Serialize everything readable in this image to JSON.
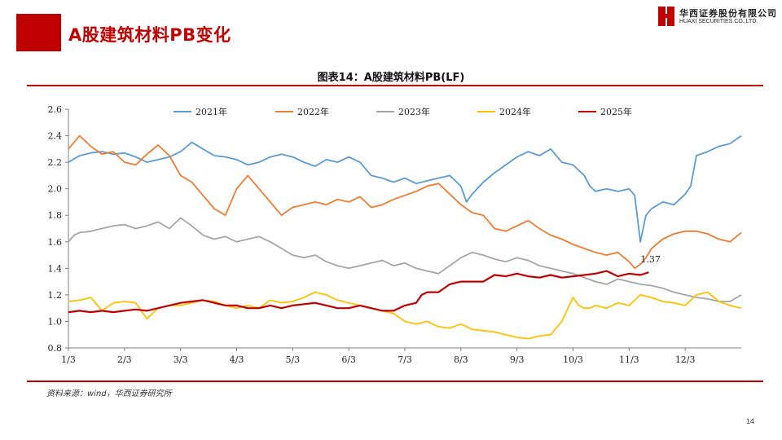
{
  "page": {
    "title": "A股建筑材料PB变化",
    "logo_cn": "华西证券股份有限公司",
    "logo_en": "HUAXI SECURITIES CO.,LTD.",
    "figure_title": "图表14：A股建筑材料PB(LF)",
    "source": "资料来源：wind，华西证券研究所",
    "page_number": "14"
  },
  "colors": {
    "brand": "#c00000"
  },
  "chart_data": {
    "type": "line",
    "title": "图表14：A股建筑材料PB(LF)",
    "xlabel": "",
    "ylabel": "",
    "x_ticks": [
      "1/3",
      "2/3",
      "3/3",
      "4/3",
      "5/3",
      "6/3",
      "7/3",
      "8/3",
      "9/3",
      "10/3",
      "11/3",
      "12/3"
    ],
    "y_ticks": [
      "0.8",
      "1.0",
      "1.2",
      "1.4",
      "1.6",
      "1.8",
      "2.0",
      "2.2",
      "2.4",
      "2.6"
    ],
    "ylim": [
      0.8,
      2.6
    ],
    "xlim": [
      0,
      12
    ],
    "grid": false,
    "legend_position": "top",
    "annotation": {
      "text": "1.37",
      "series": "2025年",
      "x": 10.35,
      "y": 1.37
    },
    "series": [
      {
        "name": "2021年",
        "color": "#5b9bd5",
        "x": [
          0,
          0.2,
          0.4,
          0.6,
          0.8,
          1.0,
          1.2,
          1.4,
          1.6,
          1.8,
          2.0,
          2.2,
          2.4,
          2.6,
          2.8,
          3.0,
          3.2,
          3.4,
          3.6,
          3.8,
          4.0,
          4.2,
          4.4,
          4.6,
          4.8,
          5.0,
          5.2,
          5.4,
          5.6,
          5.8,
          6.0,
          6.2,
          6.4,
          6.6,
          6.8,
          7.0,
          7.1,
          7.2,
          7.4,
          7.6,
          7.8,
          8.0,
          8.2,
          8.4,
          8.6,
          8.8,
          9.0,
          9.2,
          9.3,
          9.4,
          9.6,
          9.8,
          10.0,
          10.1,
          10.2,
          10.3,
          10.4,
          10.6,
          10.8,
          11.0,
          11.1,
          11.2,
          11.4,
          11.6,
          11.8,
          12.0
        ],
        "y": [
          2.2,
          2.25,
          2.27,
          2.28,
          2.26,
          2.27,
          2.24,
          2.2,
          2.22,
          2.24,
          2.28,
          2.35,
          2.3,
          2.25,
          2.24,
          2.22,
          2.18,
          2.2,
          2.24,
          2.26,
          2.24,
          2.2,
          2.17,
          2.22,
          2.2,
          2.24,
          2.2,
          2.1,
          2.08,
          2.05,
          2.08,
          2.04,
          2.06,
          2.08,
          2.1,
          2.02,
          1.9,
          1.96,
          2.05,
          2.12,
          2.18,
          2.24,
          2.28,
          2.25,
          2.3,
          2.2,
          2.18,
          2.1,
          2.02,
          1.98,
          2.0,
          1.98,
          2.0,
          1.95,
          1.6,
          1.8,
          1.85,
          1.9,
          1.88,
          1.96,
          2.02,
          2.25,
          2.28,
          2.32,
          2.34,
          2.4
        ]
      },
      {
        "name": "2022年",
        "color": "#ed7d31",
        "x": [
          0,
          0.1,
          0.2,
          0.4,
          0.6,
          0.8,
          1.0,
          1.2,
          1.4,
          1.6,
          1.8,
          2.0,
          2.2,
          2.4,
          2.6,
          2.8,
          3.0,
          3.1,
          3.2,
          3.4,
          3.6,
          3.8,
          4.0,
          4.2,
          4.4,
          4.6,
          4.8,
          5.0,
          5.2,
          5.4,
          5.6,
          5.8,
          6.0,
          6.2,
          6.4,
          6.6,
          6.8,
          7.0,
          7.2,
          7.4,
          7.6,
          7.8,
          8.0,
          8.2,
          8.4,
          8.6,
          8.8,
          9.0,
          9.2,
          9.4,
          9.6,
          9.8,
          10.0,
          10.1,
          10.2,
          10.3,
          10.4,
          10.6,
          10.8,
          11.0,
          11.2,
          11.4,
          11.6,
          11.8,
          12.0
        ],
        "y": [
          2.3,
          2.35,
          2.4,
          2.32,
          2.26,
          2.28,
          2.2,
          2.18,
          2.26,
          2.33,
          2.25,
          2.1,
          2.05,
          1.95,
          1.85,
          1.8,
          2.0,
          2.05,
          2.1,
          2.0,
          1.9,
          1.8,
          1.86,
          1.88,
          1.9,
          1.88,
          1.92,
          1.9,
          1.94,
          1.86,
          1.88,
          1.92,
          1.95,
          1.98,
          2.02,
          2.04,
          1.96,
          1.88,
          1.82,
          1.8,
          1.7,
          1.68,
          1.72,
          1.76,
          1.7,
          1.65,
          1.62,
          1.58,
          1.55,
          1.52,
          1.5,
          1.52,
          1.45,
          1.4,
          1.43,
          1.48,
          1.55,
          1.62,
          1.66,
          1.68,
          1.68,
          1.66,
          1.62,
          1.6,
          1.67
        ]
      },
      {
        "name": "2023年",
        "color": "#a5a5a5",
        "x": [
          0,
          0.1,
          0.2,
          0.4,
          0.6,
          0.8,
          1.0,
          1.2,
          1.4,
          1.6,
          1.8,
          2.0,
          2.2,
          2.4,
          2.6,
          2.8,
          3.0,
          3.2,
          3.4,
          3.6,
          3.8,
          4.0,
          4.2,
          4.4,
          4.6,
          4.8,
          5.0,
          5.2,
          5.4,
          5.6,
          5.8,
          6.0,
          6.2,
          6.4,
          6.6,
          6.8,
          7.0,
          7.2,
          7.4,
          7.6,
          7.8,
          8.0,
          8.2,
          8.4,
          8.6,
          8.8,
          9.0,
          9.2,
          9.4,
          9.6,
          9.8,
          10.0,
          10.2,
          10.4,
          10.6,
          10.8,
          11.0,
          11.2,
          11.4,
          11.6,
          11.8,
          12.0
        ],
        "y": [
          1.6,
          1.65,
          1.67,
          1.68,
          1.7,
          1.72,
          1.73,
          1.7,
          1.72,
          1.75,
          1.7,
          1.78,
          1.72,
          1.65,
          1.62,
          1.64,
          1.6,
          1.62,
          1.64,
          1.6,
          1.55,
          1.5,
          1.48,
          1.5,
          1.45,
          1.42,
          1.4,
          1.42,
          1.44,
          1.46,
          1.42,
          1.44,
          1.4,
          1.38,
          1.36,
          1.42,
          1.48,
          1.52,
          1.5,
          1.47,
          1.45,
          1.48,
          1.46,
          1.42,
          1.4,
          1.38,
          1.36,
          1.33,
          1.3,
          1.28,
          1.32,
          1.3,
          1.28,
          1.27,
          1.25,
          1.22,
          1.2,
          1.18,
          1.17,
          1.15,
          1.15,
          1.2
        ]
      },
      {
        "name": "2024年",
        "color": "#ffc000",
        "x": [
          0,
          0.2,
          0.4,
          0.6,
          0.8,
          1.0,
          1.2,
          1.4,
          1.6,
          1.8,
          2.0,
          2.2,
          2.4,
          2.6,
          2.8,
          3.0,
          3.2,
          3.4,
          3.6,
          3.8,
          4.0,
          4.2,
          4.4,
          4.6,
          4.8,
          5.0,
          5.2,
          5.4,
          5.6,
          5.8,
          6.0,
          6.2,
          6.4,
          6.6,
          6.8,
          7.0,
          7.2,
          7.4,
          7.6,
          7.8,
          8.0,
          8.2,
          8.4,
          8.6,
          8.8,
          9.0,
          9.1,
          9.2,
          9.3,
          9.4,
          9.6,
          9.8,
          10.0,
          10.2,
          10.4,
          10.6,
          10.8,
          11.0,
          11.2,
          11.4,
          11.6,
          11.8,
          12.0
        ],
        "y": [
          1.15,
          1.16,
          1.18,
          1.08,
          1.14,
          1.15,
          1.14,
          1.02,
          1.1,
          1.12,
          1.12,
          1.14,
          1.16,
          1.15,
          1.12,
          1.1,
          1.12,
          1.1,
          1.16,
          1.14,
          1.15,
          1.18,
          1.22,
          1.2,
          1.16,
          1.14,
          1.12,
          1.1,
          1.08,
          1.06,
          1.0,
          0.98,
          1.0,
          0.96,
          0.95,
          0.98,
          0.94,
          0.93,
          0.92,
          0.9,
          0.88,
          0.87,
          0.89,
          0.9,
          1.0,
          1.18,
          1.12,
          1.1,
          1.1,
          1.12,
          1.1,
          1.14,
          1.12,
          1.2,
          1.18,
          1.15,
          1.14,
          1.12,
          1.2,
          1.22,
          1.15,
          1.12,
          1.1
        ]
      },
      {
        "name": "2025年",
        "color": "#c00000",
        "x": [
          0,
          0.2,
          0.4,
          0.6,
          0.8,
          1.0,
          1.2,
          1.4,
          1.6,
          1.8,
          2.0,
          2.2,
          2.4,
          2.6,
          2.8,
          3.0,
          3.2,
          3.4,
          3.6,
          3.8,
          4.0,
          4.2,
          4.4,
          4.6,
          4.8,
          5.0,
          5.2,
          5.4,
          5.6,
          5.8,
          6.0,
          6.2,
          6.3,
          6.4,
          6.6,
          6.8,
          7.0,
          7.2,
          7.4,
          7.6,
          7.8,
          8.0,
          8.2,
          8.4,
          8.6,
          8.8,
          9.0,
          9.2,
          9.4,
          9.6,
          9.8,
          10.0,
          10.2,
          10.35
        ],
        "y": [
          1.07,
          1.08,
          1.07,
          1.08,
          1.07,
          1.08,
          1.09,
          1.08,
          1.1,
          1.12,
          1.14,
          1.15,
          1.16,
          1.14,
          1.12,
          1.12,
          1.1,
          1.1,
          1.12,
          1.1,
          1.12,
          1.13,
          1.14,
          1.12,
          1.1,
          1.1,
          1.12,
          1.1,
          1.08,
          1.08,
          1.12,
          1.14,
          1.2,
          1.22,
          1.22,
          1.28,
          1.3,
          1.3,
          1.3,
          1.35,
          1.34,
          1.36,
          1.34,
          1.33,
          1.35,
          1.33,
          1.34,
          1.35,
          1.36,
          1.38,
          1.34,
          1.36,
          1.35,
          1.37
        ]
      }
    ]
  }
}
